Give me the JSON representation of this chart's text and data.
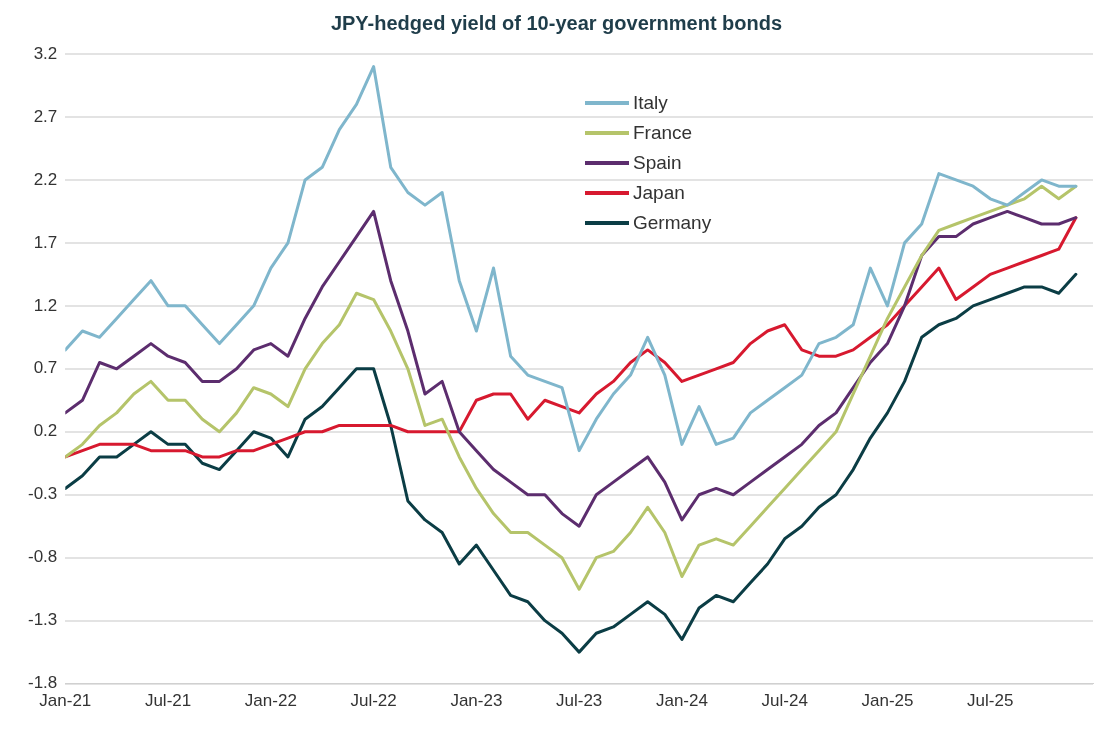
{
  "chart_data": {
    "type": "line",
    "title": "JPY-hedged yield of 10-year government bonds",
    "x": [
      "2021-01",
      "2021-02",
      "2021-03",
      "2021-04",
      "2021-05",
      "2021-06",
      "2021-07",
      "2021-08",
      "2021-09",
      "2021-10",
      "2021-11",
      "2021-12",
      "2022-01",
      "2022-02",
      "2022-03",
      "2022-04",
      "2022-05",
      "2022-06",
      "2022-07",
      "2022-08",
      "2022-09",
      "2022-10",
      "2022-11",
      "2022-12",
      "2023-01",
      "2023-02",
      "2023-03",
      "2023-04",
      "2023-05",
      "2023-06",
      "2023-07",
      "2023-08",
      "2023-09",
      "2023-10",
      "2023-11",
      "2023-12",
      "2024-01",
      "2024-02",
      "2024-03",
      "2024-04",
      "2024-05",
      "2024-06",
      "2024-07",
      "2024-08",
      "2024-09",
      "2024-10",
      "2024-11",
      "2024-12",
      "2025-01",
      "2025-02",
      "2025-03",
      "2025-04",
      "2025-05",
      "2025-06",
      "2025-07",
      "2025-08",
      "2025-09",
      "2025-10",
      "2025-11",
      "2025-12"
    ],
    "series": [
      {
        "name": "Italy",
        "color": "#7fb6cc",
        "values": [
          0.85,
          1.0,
          0.95,
          1.1,
          1.25,
          1.4,
          1.2,
          1.2,
          1.05,
          0.9,
          1.05,
          1.2,
          1.5,
          1.7,
          2.2,
          2.3,
          2.6,
          2.8,
          3.1,
          2.3,
          2.1,
          2.0,
          2.1,
          1.4,
          1.0,
          1.5,
          0.8,
          0.65,
          0.6,
          0.55,
          0.05,
          0.3,
          0.5,
          0.65,
          0.95,
          0.65,
          0.1,
          0.4,
          0.1,
          0.15,
          0.35,
          0.45,
          0.55,
          0.65,
          0.9,
          0.95,
          1.05,
          1.5,
          1.2,
          1.7,
          1.85,
          2.25,
          2.2,
          2.15,
          2.05,
          2.0,
          2.1,
          2.2,
          2.15,
          2.15
        ]
      },
      {
        "name": "France",
        "color": "#b5c46a",
        "values": [
          0.0,
          0.1,
          0.25,
          0.35,
          0.5,
          0.6,
          0.45,
          0.45,
          0.3,
          0.2,
          0.35,
          0.55,
          0.5,
          0.4,
          0.7,
          0.9,
          1.05,
          1.3,
          1.25,
          1.0,
          0.7,
          0.25,
          0.3,
          0.0,
          -0.25,
          -0.45,
          -0.6,
          -0.6,
          -0.7,
          -0.8,
          -1.05,
          -0.8,
          -0.75,
          -0.6,
          -0.4,
          -0.6,
          -0.95,
          -0.7,
          -0.65,
          -0.7,
          -0.55,
          -0.4,
          -0.25,
          -0.1,
          0.05,
          0.2,
          0.5,
          0.8,
          1.1,
          1.35,
          1.6,
          1.8,
          1.85,
          1.9,
          1.95,
          2.0,
          2.05,
          2.15,
          2.05,
          2.15
        ]
      },
      {
        "name": "Spain",
        "color": "#5c2d6e",
        "values": [
          0.35,
          0.45,
          0.75,
          0.7,
          0.8,
          0.9,
          0.8,
          0.75,
          0.6,
          0.6,
          0.7,
          0.85,
          0.9,
          0.8,
          1.1,
          1.35,
          1.55,
          1.75,
          1.95,
          1.4,
          1.0,
          0.5,
          0.6,
          0.2,
          0.05,
          -0.1,
          -0.2,
          -0.3,
          -0.3,
          -0.45,
          -0.55,
          -0.3,
          -0.2,
          -0.1,
          0.0,
          -0.2,
          -0.5,
          -0.3,
          -0.25,
          -0.3,
          -0.2,
          -0.1,
          0.0,
          0.1,
          0.25,
          0.35,
          0.55,
          0.75,
          0.9,
          1.2,
          1.6,
          1.75,
          1.75,
          1.85,
          1.9,
          1.95,
          1.9,
          1.85,
          1.85,
          1.9
        ]
      },
      {
        "name": "Japan",
        "color": "#d7192f",
        "values": [
          0.0,
          0.05,
          0.1,
          0.1,
          0.1,
          0.05,
          0.05,
          0.05,
          0.0,
          0.0,
          0.05,
          0.05,
          0.1,
          0.15,
          0.2,
          0.2,
          0.25,
          0.25,
          0.25,
          0.25,
          0.2,
          0.2,
          0.2,
          0.2,
          0.45,
          0.5,
          0.5,
          0.3,
          0.45,
          0.4,
          0.35,
          0.5,
          0.6,
          0.75,
          0.85,
          0.75,
          0.6,
          0.65,
          0.7,
          0.75,
          0.9,
          1.0,
          1.05,
          0.85,
          0.8,
          0.8,
          0.85,
          0.95,
          1.05,
          1.2,
          1.35,
          1.5,
          1.25,
          1.35,
          1.45,
          1.5,
          1.55,
          1.6,
          1.65,
          1.9
        ]
      },
      {
        "name": "Germany",
        "color": "#0b3d45",
        "values": [
          -0.25,
          -0.15,
          0.0,
          0.0,
          0.1,
          0.2,
          0.1,
          0.1,
          -0.05,
          -0.1,
          0.05,
          0.2,
          0.15,
          0.0,
          0.3,
          0.4,
          0.55,
          0.7,
          0.7,
          0.25,
          -0.35,
          -0.5,
          -0.6,
          -0.85,
          -0.7,
          -0.9,
          -1.1,
          -1.15,
          -1.3,
          -1.4,
          -1.55,
          -1.4,
          -1.35,
          -1.25,
          -1.15,
          -1.25,
          -1.45,
          -1.2,
          -1.1,
          -1.15,
          -1.0,
          -0.85,
          -0.65,
          -0.55,
          -0.4,
          -0.3,
          -0.1,
          0.15,
          0.35,
          0.6,
          0.95,
          1.05,
          1.1,
          1.2,
          1.25,
          1.3,
          1.35,
          1.35,
          1.3,
          1.45
        ]
      }
    ],
    "xlim": [
      "2021-01",
      "2026-01"
    ],
    "xticks": [
      {
        "value": "2021-01",
        "label": "Jan-21"
      },
      {
        "value": "2021-07",
        "label": "Jul-21"
      },
      {
        "value": "2022-01",
        "label": "Jan-22"
      },
      {
        "value": "2022-07",
        "label": "Jul-22"
      },
      {
        "value": "2023-01",
        "label": "Jan-23"
      },
      {
        "value": "2023-07",
        "label": "Jul-23"
      },
      {
        "value": "2024-01",
        "label": "Jan-24"
      },
      {
        "value": "2024-07",
        "label": "Jul-24"
      },
      {
        "value": "2025-01",
        "label": "Jan-25"
      },
      {
        "value": "2025-07",
        "label": "Jul-25"
      }
    ],
    "ylim": [
      -1.8,
      3.2
    ],
    "yticks": [
      -1.8,
      -1.3,
      -0.8,
      -0.3,
      0.2,
      0.7,
      1.2,
      1.7,
      2.2,
      2.7,
      3.2
    ],
    "grid": "y",
    "legend": "top",
    "marker": "none",
    "line_style": "solid"
  }
}
